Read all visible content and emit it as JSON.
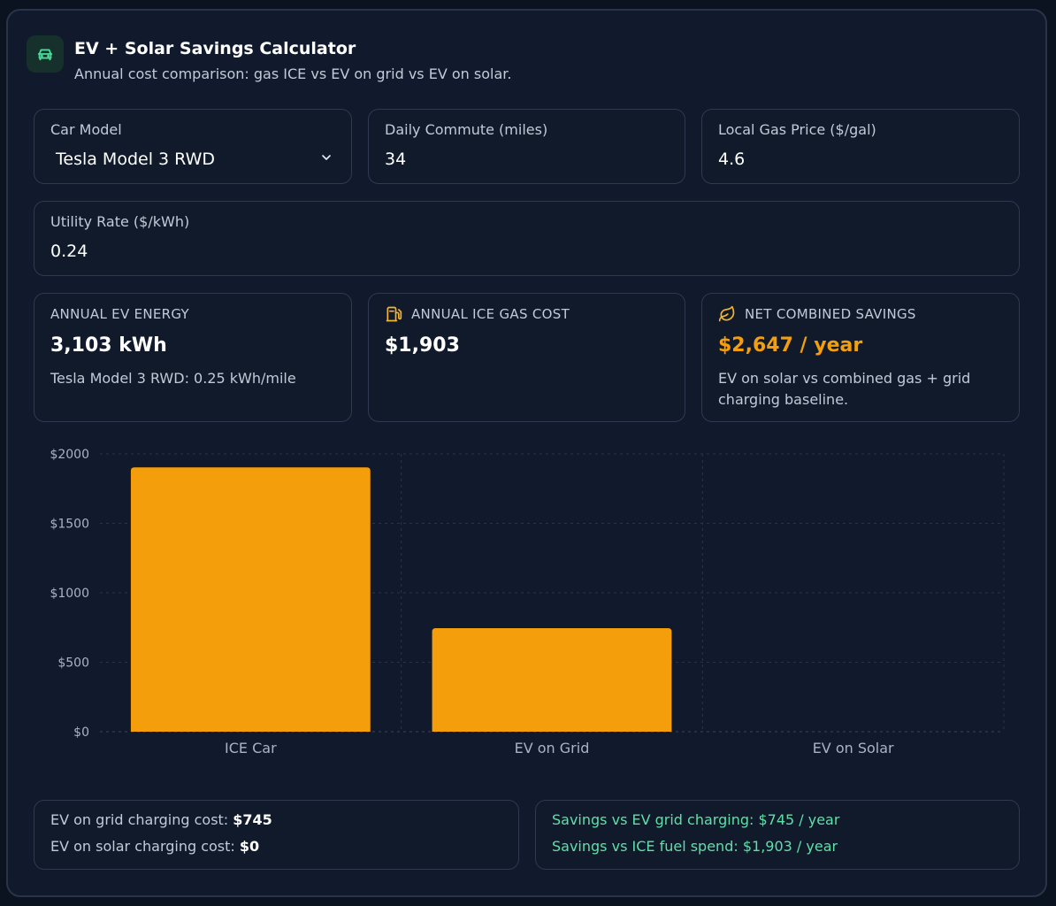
{
  "header": {
    "title": "EV + Solar Savings Calculator",
    "subtitle": "Annual cost comparison: gas ICE vs EV on grid vs EV on solar.",
    "icon": "car-icon"
  },
  "inputs": {
    "car_model": {
      "label": "Car Model",
      "value": "Tesla Model 3 RWD"
    },
    "daily_commute": {
      "label": "Daily Commute (miles)",
      "value": "34"
    },
    "gas_price": {
      "label": "Local Gas Price ($/gal)",
      "value": "4.6"
    },
    "utility_rate": {
      "label": "Utility Rate ($/kWh)",
      "value": "0.24"
    }
  },
  "stats": {
    "ev_energy": {
      "label": "ANNUAL EV ENERGY",
      "value": "3,103 kWh",
      "note": "Tesla Model 3 RWD: 0.25 kWh/mile"
    },
    "ice_cost": {
      "label": "ANNUAL ICE GAS COST",
      "value": "$1,903",
      "icon": "fuel-pump-icon"
    },
    "net_savings": {
      "label": "NET COMBINED SAVINGS",
      "value": "$2,647 / year",
      "note": "EV on solar vs combined gas + grid charging baseline.",
      "icon": "leaf-icon",
      "accent": "#f59e0b"
    }
  },
  "chart_data": {
    "type": "bar",
    "categories": [
      "ICE Car",
      "EV on Grid",
      "EV on Solar"
    ],
    "values": [
      1903,
      745,
      0
    ],
    "yticks": [
      "$0",
      "$500",
      "$1000",
      "$1500",
      "$2000"
    ],
    "ylim": [
      0,
      2000
    ],
    "bar_color": "#f59e0b",
    "grid": true
  },
  "summary": {
    "grid_cost_label": "EV on grid charging cost:",
    "grid_cost_value": "$745",
    "solar_cost_label": "EV on solar charging cost:",
    "solar_cost_value": "$0",
    "savings_grid": "Savings vs EV grid charging: $745 / year",
    "savings_ice": "Savings vs ICE fuel spend: $1,903 / year"
  }
}
